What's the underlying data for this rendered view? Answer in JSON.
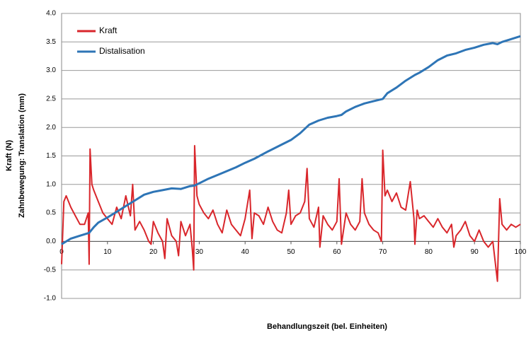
{
  "chart_data": {
    "type": "line",
    "xlabel": "Behandlungszeit (bel. Einheiten)",
    "ylabel": [
      "Kraft (N)",
      "Zahnbewegung: Translation (mm)"
    ],
    "xlim": [
      0,
      100
    ],
    "xticks": [
      0,
      10,
      20,
      30,
      40,
      50,
      60,
      70,
      80,
      90,
      100
    ],
    "ylim": [
      -1,
      4
    ],
    "yticks": [
      {
        "value": 4,
        "label": "4.0"
      },
      3.5,
      {
        "value": 3,
        "label": "3.0"
      },
      2.5,
      {
        "value": 2,
        "label": "2.0"
      },
      1.5,
      {
        "value": 1,
        "label": "1.0"
      },
      0.5,
      {
        "value": 0,
        "label": "0.0"
      },
      -0.5,
      {
        "value": -1,
        "label": "-1.0"
      }
    ],
    "grid": true,
    "legend": "upper left",
    "series": [
      {
        "name": "Kraft",
        "color": "#d9262b",
        "x": [
          0,
          0.5,
          1,
          2,
          3,
          4,
          5,
          5.8,
          6,
          6.2,
          6.6,
          7,
          8,
          9,
          10,
          11,
          12,
          13,
          14,
          15,
          15.5,
          16,
          17,
          18,
          19,
          19.5,
          20,
          21,
          22,
          22.5,
          23,
          24,
          25,
          25.5,
          26,
          27,
          28,
          28.5,
          28.8,
          29,
          29.5,
          30,
          31,
          32,
          33,
          34,
          35,
          36,
          37,
          38,
          39,
          40,
          41,
          41.5,
          42,
          43,
          44,
          45,
          46,
          47,
          48,
          49,
          49.5,
          50,
          51,
          52,
          53,
          53.5,
          54,
          55,
          56,
          56.3,
          57,
          58,
          59,
          60,
          60.5,
          61,
          62,
          63,
          64,
          65,
          65.5,
          66,
          67,
          68,
          69,
          69.7,
          70,
          70.5,
          71,
          72,
          73,
          74,
          75,
          76,
          76.8,
          77,
          77.5,
          78,
          79,
          80,
          81,
          82,
          83,
          84,
          85,
          85.5,
          86,
          87,
          88,
          89,
          90,
          91,
          92,
          93,
          94,
          95,
          95.5,
          96,
          97,
          98,
          99,
          100
        ],
        "values": [
          -0.4,
          0.7,
          0.8,
          0.6,
          0.45,
          0.3,
          0.3,
          0.5,
          -0.4,
          1.62,
          1.0,
          0.9,
          0.7,
          0.5,
          0.4,
          0.3,
          0.6,
          0.4,
          0.8,
          0.45,
          1.0,
          0.2,
          0.35,
          0.2,
          0.0,
          -0.05,
          0.35,
          0.15,
          0.0,
          -0.3,
          0.4,
          0.1,
          0.0,
          -0.25,
          0.35,
          0.1,
          0.3,
          -0.15,
          -0.5,
          1.68,
          0.8,
          0.65,
          0.5,
          0.4,
          0.55,
          0.3,
          0.15,
          0.55,
          0.3,
          0.2,
          0.1,
          0.4,
          0.9,
          0.05,
          0.5,
          0.45,
          0.3,
          0.6,
          0.35,
          0.2,
          0.15,
          0.5,
          0.9,
          0.3,
          0.45,
          0.5,
          0.7,
          1.28,
          0.4,
          0.25,
          0.6,
          -0.1,
          0.45,
          0.3,
          0.2,
          0.35,
          1.1,
          -0.05,
          0.5,
          0.3,
          0.2,
          0.35,
          1.1,
          0.5,
          0.3,
          0.2,
          0.15,
          0.0,
          1.6,
          0.8,
          0.9,
          0.7,
          0.85,
          0.6,
          0.55,
          1.05,
          0.4,
          -0.05,
          0.55,
          0.4,
          0.45,
          0.35,
          0.25,
          0.4,
          0.25,
          0.15,
          0.3,
          -0.1,
          0.1,
          0.2,
          0.35,
          0.1,
          0.0,
          0.2,
          0.0,
          -0.1,
          0.0,
          -0.7,
          0.75,
          0.3,
          0.2,
          0.3,
          0.25,
          0.3
        ]
      },
      {
        "name": "Distalisation",
        "color": "#2e75b6",
        "x": [
          0,
          2,
          4,
          6,
          7,
          8,
          10,
          12,
          14,
          16,
          18,
          20,
          22,
          24,
          26,
          28,
          29,
          30,
          32,
          35,
          38,
          40,
          42,
          45,
          48,
          50,
          52,
          54,
          56,
          58,
          60,
          61,
          62,
          64,
          66,
          68,
          70,
          71,
          73,
          75,
          77,
          78,
          80,
          82,
          84,
          86,
          88,
          90,
          92,
          94,
          95,
          96,
          98,
          100
        ],
        "values": [
          -0.05,
          0.05,
          0.1,
          0.15,
          0.25,
          0.33,
          0.42,
          0.52,
          0.62,
          0.72,
          0.82,
          0.87,
          0.9,
          0.93,
          0.92,
          0.97,
          0.98,
          1.02,
          1.1,
          1.2,
          1.3,
          1.38,
          1.45,
          1.58,
          1.7,
          1.78,
          1.9,
          2.05,
          2.12,
          2.17,
          2.2,
          2.22,
          2.28,
          2.36,
          2.42,
          2.46,
          2.5,
          2.6,
          2.7,
          2.82,
          2.92,
          2.96,
          3.06,
          3.18,
          3.26,
          3.3,
          3.36,
          3.4,
          3.45,
          3.48,
          3.46,
          3.5,
          3.55,
          3.6
        ]
      }
    ]
  }
}
